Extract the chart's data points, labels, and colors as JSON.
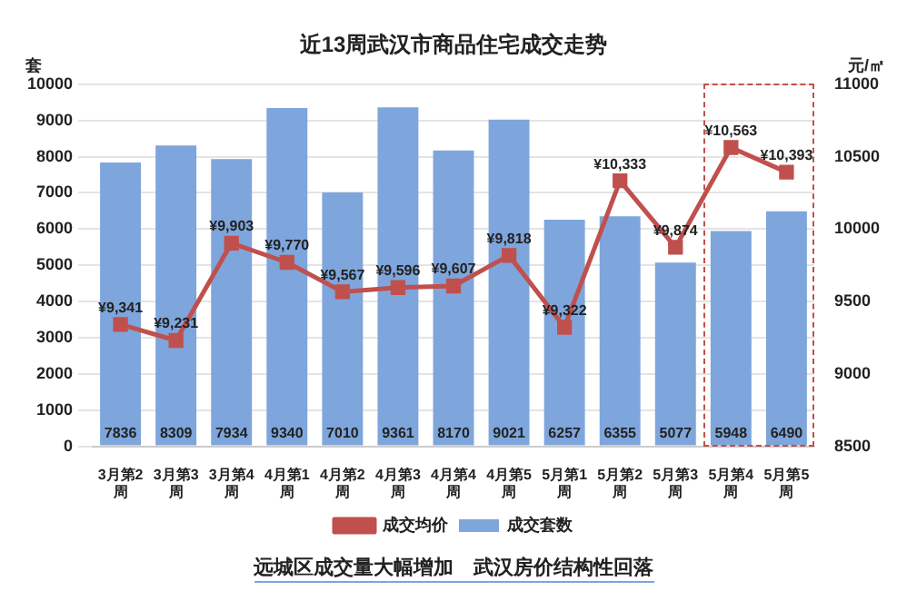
{
  "chart_data": {
    "type": "bar",
    "title": "近13周武汉市商品住宅成交走势",
    "ylabel": "套",
    "y2label": "元/㎡",
    "categories": [
      "3月第2周",
      "3月第3周",
      "3月第4周",
      "4月第1周",
      "4月第2周",
      "4月第3周",
      "4月第4周",
      "4月第5周",
      "5月第1周",
      "5月第2周",
      "5月第3周",
      "5月第4周",
      "5月第5周"
    ],
    "series": [
      {
        "name": "成交套数",
        "color": "#7ea6dc",
        "values": [
          7836,
          8309,
          7934,
          9340,
          7010,
          9361,
          8170,
          9021,
          6257,
          6355,
          5077,
          5948,
          6490
        ],
        "value_labels": [
          "7836",
          "8309",
          "7934",
          "9340",
          "7010",
          "9361",
          "8170",
          "9021",
          "6257",
          "6355",
          "5077",
          "5948",
          "6490"
        ]
      },
      {
        "name": "成交均价",
        "type": "line",
        "axis": "y2",
        "color": "#c0504d",
        "marker": "square",
        "values": [
          9341,
          9231,
          9903,
          9770,
          9567,
          9596,
          9607,
          9818,
          9322,
          10333,
          9874,
          10563,
          10393
        ],
        "value_labels": [
          "¥9,341",
          "¥9,231",
          "¥9,903",
          "¥9,770",
          "¥9,567",
          "¥9,596",
          "¥9,607",
          "¥9,818",
          "¥9,322",
          "¥10,333",
          "¥9,874",
          "¥10,563",
          "¥10,393"
        ]
      }
    ],
    "ylim": [
      0,
      10000
    ],
    "yticks": [
      0,
      1000,
      2000,
      3000,
      4000,
      5000,
      6000,
      7000,
      8000,
      9000,
      10000
    ],
    "y2lim": [
      8500,
      11000
    ],
    "y2ticks": [
      8500,
      9000,
      9500,
      10000,
      10500,
      11000
    ],
    "grid": "y",
    "legend": "bottom",
    "annotations": [
      "远城区成交量大幅增加　武汉房价结构性回落"
    ]
  }
}
